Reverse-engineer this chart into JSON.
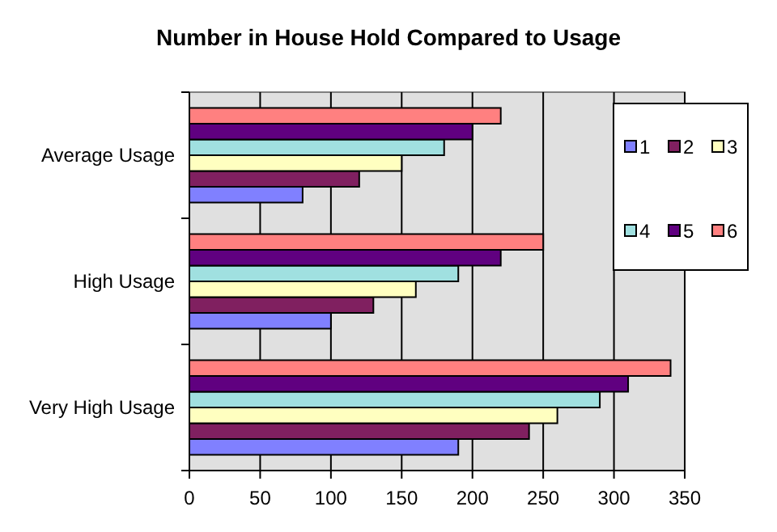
{
  "chart_data": {
    "type": "bar",
    "orientation": "horizontal",
    "title": "Number in House Hold Compared to Usage",
    "categories": [
      "Average Usage",
      "High Usage",
      "Very High Usage"
    ],
    "series": [
      {
        "name": "1",
        "color": "#8080ff",
        "values": [
          80,
          100,
          190
        ]
      },
      {
        "name": "2",
        "color": "#802060",
        "values": [
          120,
          130,
          240
        ]
      },
      {
        "name": "3",
        "color": "#ffffc0",
        "values": [
          150,
          160,
          260
        ]
      },
      {
        "name": "4",
        "color": "#a0e0e0",
        "values": [
          180,
          190,
          290
        ]
      },
      {
        "name": "5",
        "color": "#600080",
        "values": [
          200,
          220,
          310
        ]
      },
      {
        "name": "6",
        "color": "#ff8080",
        "values": [
          220,
          250,
          340
        ]
      }
    ],
    "xlim": [
      0,
      350
    ],
    "xticks": [
      0,
      50,
      100,
      150,
      200,
      250,
      300,
      350
    ],
    "grid": "x",
    "legend": "top right"
  }
}
